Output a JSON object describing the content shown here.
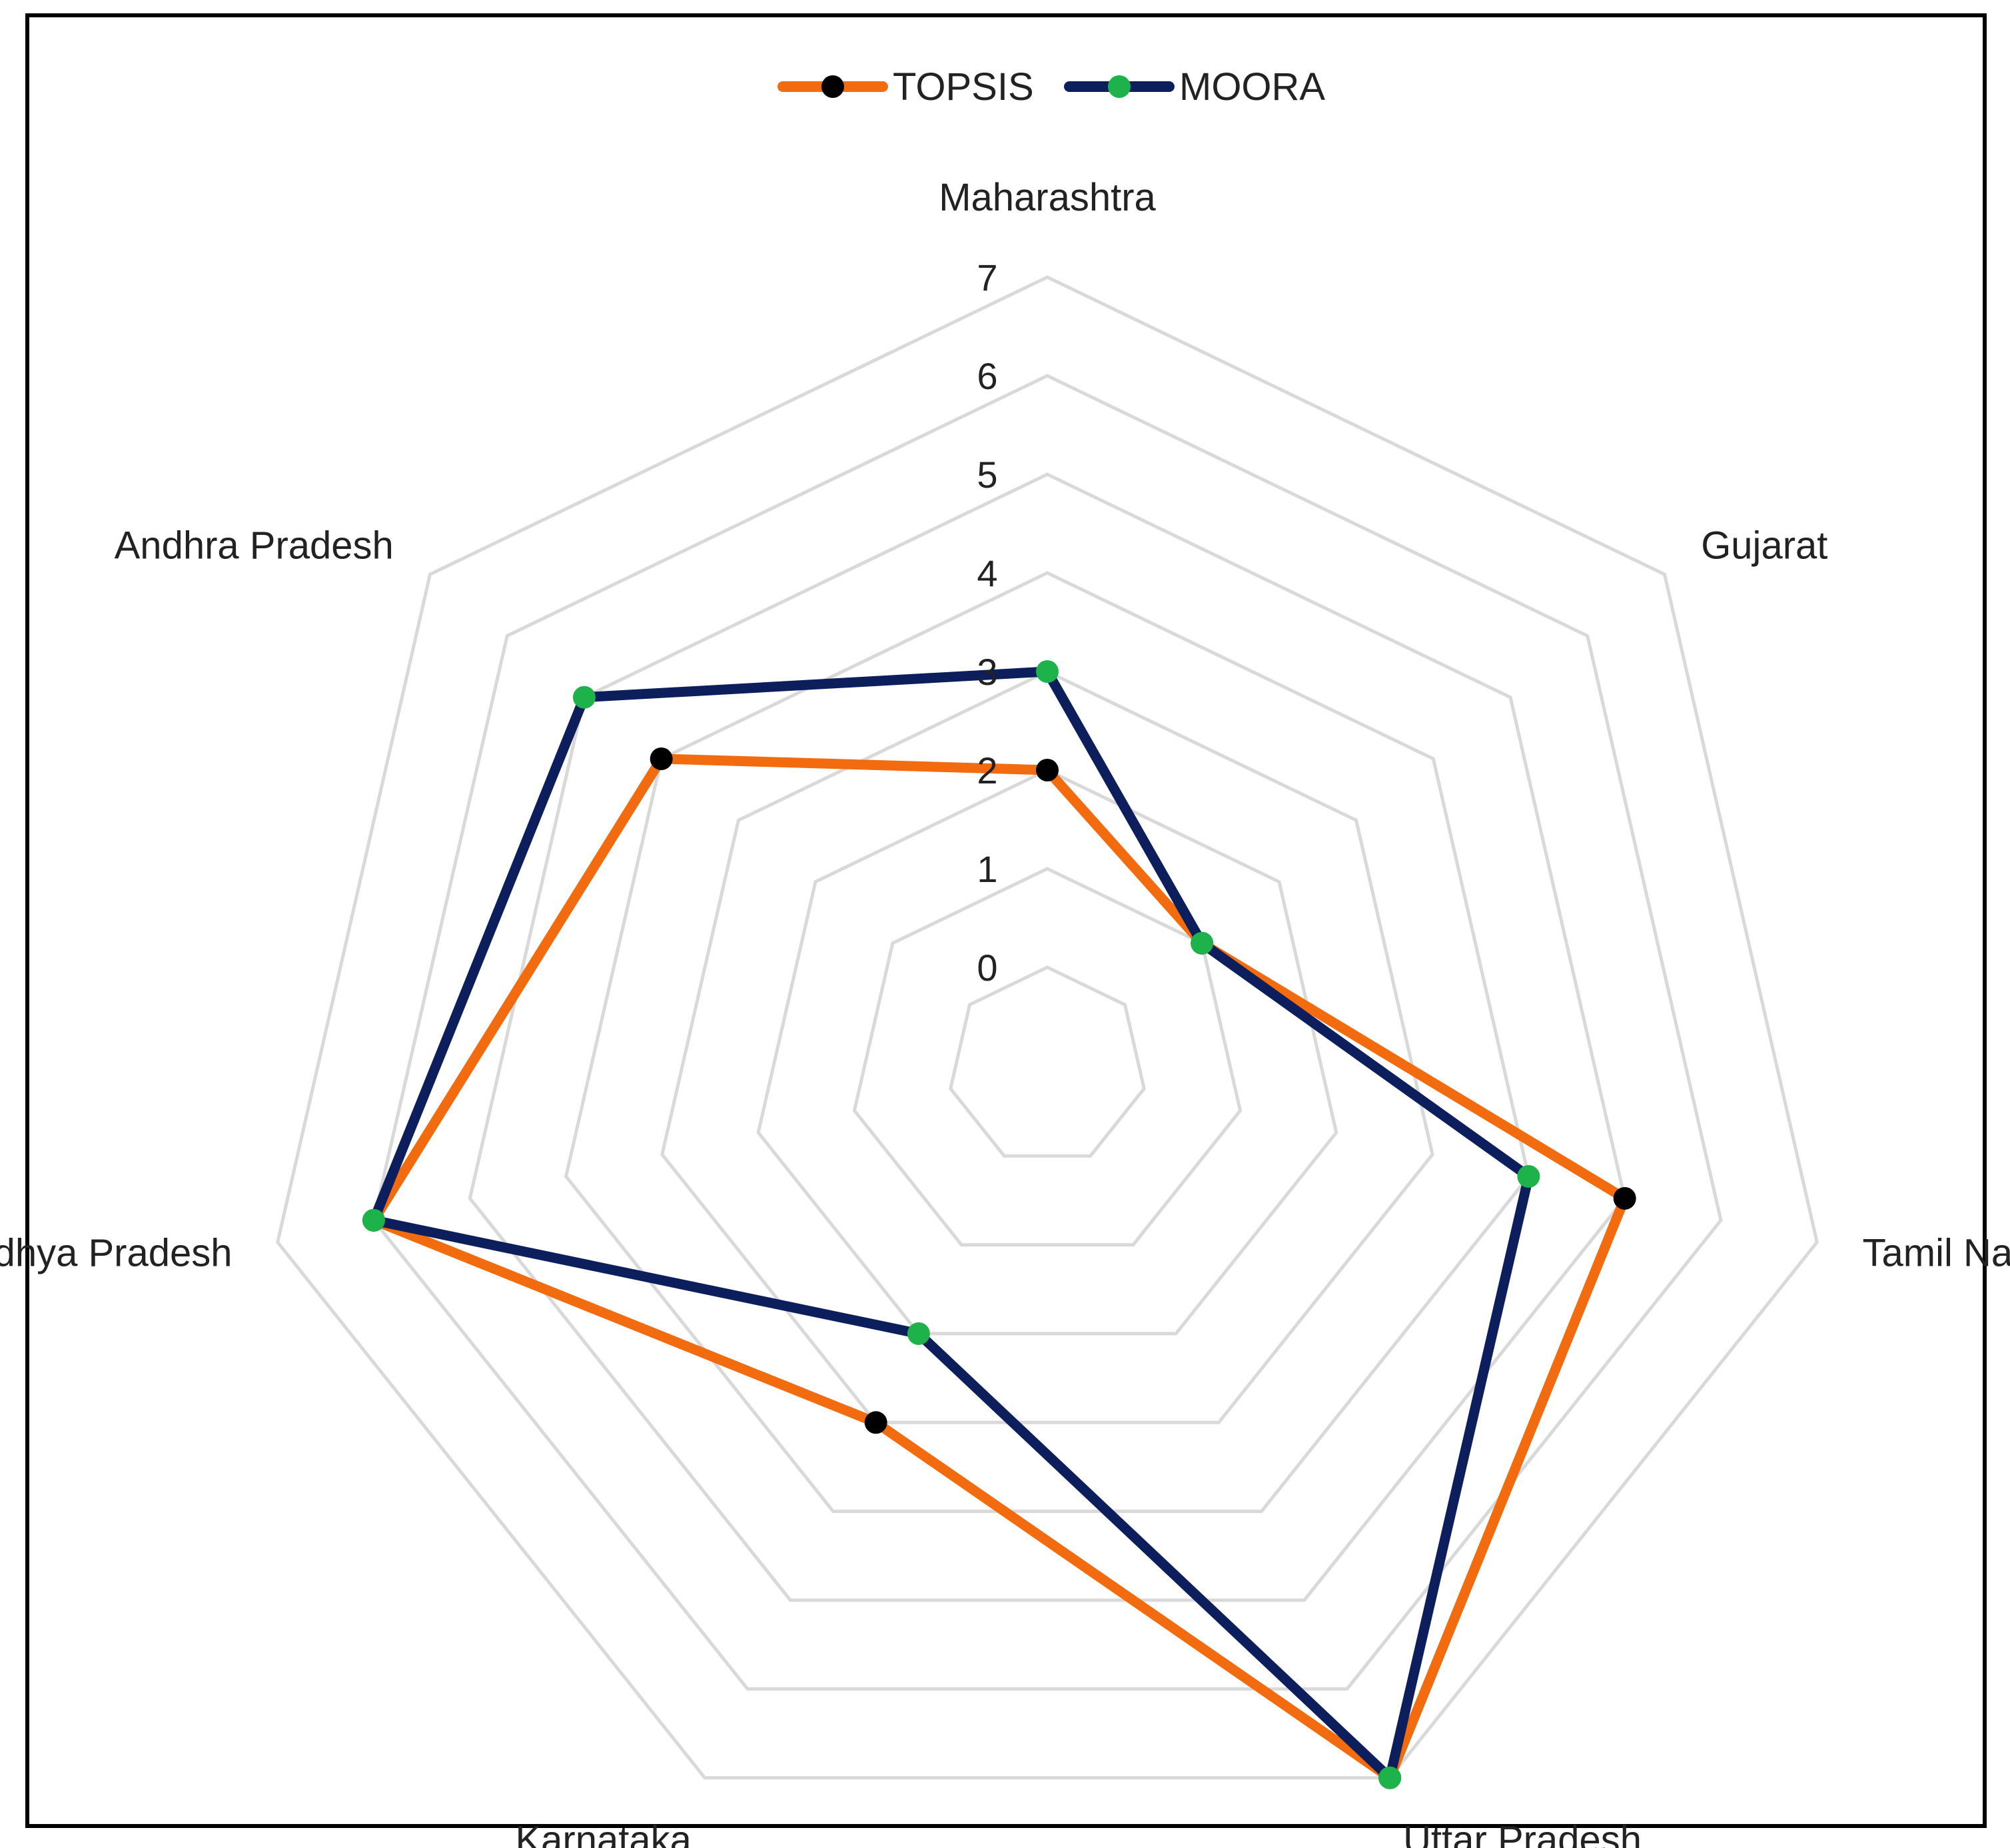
{
  "chart_data": {
    "type": "radar",
    "title": "",
    "categories": [
      "Maharashtra",
      "Gujarat",
      "Tamil Nadu",
      "Uttar Pradesh",
      "Karnataka",
      "Madhya Pradesh",
      "Andhra Pradesh"
    ],
    "rlim": [
      0,
      7
    ],
    "ticks": [
      "0",
      "1",
      "2",
      "3",
      "4",
      "5",
      "6",
      "7"
    ],
    "grid": true,
    "legend_position": "top-center",
    "series": [
      {
        "name": "TOPSIS",
        "values": [
          2,
          1,
          5,
          7,
          3,
          6,
          4
        ],
        "line_color": "#F26B0F",
        "marker_color": "#000000"
      },
      {
        "name": "MOORA",
        "values": [
          3,
          1,
          4,
          7,
          2,
          6,
          5
        ],
        "line_color": "#0D1E5C",
        "marker_color": "#1DB34A"
      }
    ]
  }
}
